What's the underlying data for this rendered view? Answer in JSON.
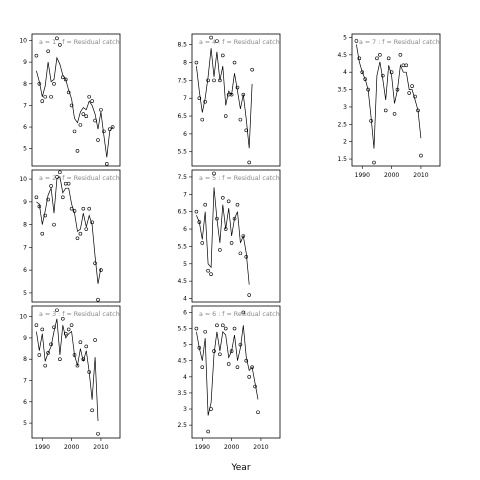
{
  "figure": {
    "xlabel": "Year"
  },
  "chart_data": [
    {
      "type": "line",
      "panel_label": "a = 1  :  f = Residual catch",
      "xlim": [
        1986.5,
        2016.5
      ],
      "ylim": [
        4.2,
        10.3
      ],
      "yticks": [
        5,
        6,
        7,
        8,
        9,
        10
      ],
      "xticks": [],
      "x": [
        1988,
        1989,
        1990,
        1991,
        1992,
        1993,
        1994,
        1995,
        1996,
        1997,
        1998,
        1999,
        2000,
        2001,
        2002,
        2003,
        2004,
        2005,
        2006,
        2007,
        2008,
        2009,
        2010,
        2011,
        2012,
        2013,
        2014,
        2015
      ],
      "points": [
        9.3,
        8.0,
        7.2,
        7.4,
        9.5,
        7.4,
        8.0,
        10.1,
        9.8,
        8.3,
        8.2,
        7.6,
        7.0,
        5.8,
        4.9,
        6.1,
        6.6,
        6.5,
        7.4,
        7.2,
        6.3,
        5.4,
        6.8,
        5.8,
        4.3,
        5.9,
        6.0,
        null
      ],
      "fitted": [
        8.6,
        8.1,
        7.4,
        7.9,
        9.0,
        8.1,
        8.2,
        9.2,
        8.9,
        8.4,
        8.2,
        7.7,
        7.3,
        6.4,
        6.2,
        6.7,
        6.9,
        6.8,
        7.2,
        7.0,
        6.6,
        5.9,
        6.7,
        5.6,
        4.6,
        5.8,
        6.0,
        null
      ]
    },
    {
      "type": "line",
      "panel_label": "a = 2  :  f = Residual catch",
      "xlim": [
        1986.5,
        2016.5
      ],
      "ylim": [
        4.6,
        10.4
      ],
      "yticks": [
        5,
        6,
        7,
        8,
        9,
        10
      ],
      "xticks": [],
      "x": [
        1988,
        1989,
        1990,
        1991,
        1992,
        1993,
        1994,
        1995,
        1996,
        1997,
        1998,
        1999,
        2000,
        2001,
        2002,
        2003,
        2004,
        2005,
        2006,
        2007,
        2008,
        2009,
        2010,
        2011,
        2012,
        2013,
        2014,
        2015
      ],
      "points": [
        9.2,
        8.8,
        7.6,
        8.4,
        9.1,
        9.7,
        8.0,
        10.1,
        10.3,
        9.2,
        9.8,
        9.8,
        8.7,
        8.6,
        7.4,
        7.6,
        8.7,
        7.8,
        8.7,
        8.1,
        6.3,
        4.7,
        6.0,
        null,
        null,
        null,
        null,
        null
      ],
      "fitted": [
        9.0,
        8.9,
        8.0,
        8.6,
        9.3,
        9.6,
        8.5,
        10.0,
        10.1,
        9.4,
        9.6,
        9.6,
        8.9,
        8.5,
        7.7,
        7.8,
        8.5,
        7.9,
        8.4,
        8.0,
        6.6,
        5.4,
        6.1,
        null,
        null,
        null,
        null,
        null
      ]
    },
    {
      "type": "line",
      "panel_label": "a = 3  :  f = Residual catch",
      "xlim": [
        1986.5,
        2016.5
      ],
      "ylim": [
        4.3,
        10.5
      ],
      "yticks": [
        5,
        6,
        7,
        8,
        9,
        10
      ],
      "xticks": [
        1990,
        2000,
        2010
      ],
      "x": [
        1988,
        1989,
        1990,
        1991,
        1992,
        1993,
        1994,
        1995,
        1996,
        1997,
        1998,
        1999,
        2000,
        2001,
        2002,
        2003,
        2004,
        2005,
        2006,
        2007,
        2008,
        2009,
        2010,
        2011,
        2012,
        2013,
        2014,
        2015
      ],
      "points": [
        9.6,
        8.2,
        9.4,
        7.7,
        8.3,
        8.7,
        9.5,
        10.3,
        8.0,
        9.9,
        9.2,
        9.4,
        9.6,
        8.2,
        7.7,
        8.8,
        8.0,
        8.6,
        7.4,
        5.6,
        8.9,
        4.5,
        null,
        null,
        null,
        null,
        null,
        null
      ],
      "fitted": [
        9.3,
        8.4,
        9.2,
        7.9,
        8.3,
        8.6,
        9.3,
        9.9,
        8.2,
        9.6,
        9.0,
        9.2,
        9.3,
        8.2,
        7.7,
        8.5,
        7.9,
        8.4,
        7.4,
        6.1,
        8.1,
        5.1,
        null,
        null,
        null,
        null,
        null,
        null
      ]
    },
    {
      "type": "line",
      "panel_label": "a = 4  :  f = Residual catch",
      "xlim": [
        1986.5,
        2016.5
      ],
      "ylim": [
        5.1,
        8.8
      ],
      "yticks": [
        5.5,
        6.0,
        6.5,
        7.0,
        7.5,
        8.0,
        8.5
      ],
      "xticks": [],
      "x": [
        1988,
        1989,
        1990,
        1991,
        1992,
        1993,
        1994,
        1995,
        1996,
        1997,
        1998,
        1999,
        2000,
        2001,
        2002,
        2003,
        2004,
        2005,
        2006,
        2007,
        2008,
        2009,
        2010,
        2011,
        2012,
        2013,
        2014,
        2015
      ],
      "points": [
        8.0,
        7.0,
        6.4,
        6.9,
        7.5,
        8.7,
        7.5,
        8.6,
        7.5,
        8.2,
        6.5,
        7.1,
        7.1,
        8.0,
        7.3,
        6.4,
        7.1,
        6.1,
        5.2,
        7.8,
        null,
        null,
        null,
        null,
        null,
        null,
        null,
        null
      ],
      "fitted": [
        7.9,
        7.2,
        6.6,
        7.0,
        7.6,
        8.4,
        7.6,
        8.3,
        7.5,
        7.9,
        6.8,
        7.2,
        7.1,
        7.7,
        7.2,
        6.7,
        7.1,
        6.4,
        5.6,
        7.4,
        null,
        null,
        null,
        null,
        null,
        null,
        null,
        null
      ]
    },
    {
      "type": "line",
      "panel_label": "a = 5  :  f = Residual catch",
      "xlim": [
        1986.5,
        2016.5
      ],
      "ylim": [
        3.9,
        7.7
      ],
      "yticks": [
        4.0,
        4.5,
        5.0,
        5.5,
        6.0,
        6.5,
        7.0,
        7.5
      ],
      "xticks": [],
      "x": [
        1988,
        1989,
        1990,
        1991,
        1992,
        1993,
        1994,
        1995,
        1996,
        1997,
        1998,
        1999,
        2000,
        2001,
        2002,
        2003,
        2004,
        2005,
        2006,
        2007,
        2008,
        2009,
        2010,
        2011,
        2012,
        2013,
        2014,
        2015
      ],
      "points": [
        6.5,
        6.2,
        5.6,
        6.7,
        4.8,
        4.7,
        7.6,
        6.3,
        5.4,
        6.9,
        6.0,
        6.8,
        5.6,
        6.3,
        6.7,
        5.3,
        5.8,
        5.2,
        4.1,
        null,
        null,
        null,
        null,
        null,
        null,
        null,
        null,
        null
      ],
      "fitted": [
        6.4,
        6.2,
        5.7,
        6.5,
        5.0,
        4.9,
        7.2,
        6.3,
        5.6,
        6.7,
        6.0,
        6.6,
        5.8,
        6.3,
        6.5,
        5.6,
        5.8,
        5.3,
        4.4,
        null,
        null,
        null,
        null,
        null,
        null,
        null,
        null,
        null
      ]
    },
    {
      "type": "line",
      "panel_label": "a = 6  :  f = Residual catch",
      "xlim": [
        1986.5,
        2016.5
      ],
      "ylim": [
        2.1,
        6.2
      ],
      "yticks": [
        2.5,
        3.0,
        3.5,
        4.0,
        4.5,
        5.0,
        5.5,
        6.0
      ],
      "xticks": [
        1990,
        2000,
        2010
      ],
      "x": [
        1988,
        1989,
        1990,
        1991,
        1992,
        1993,
        1994,
        1995,
        1996,
        1997,
        1998,
        1999,
        2000,
        2001,
        2002,
        2003,
        2004,
        2005,
        2006,
        2007,
        2008,
        2009,
        2010,
        2011,
        2012,
        2013,
        2014,
        2015
      ],
      "points": [
        5.5,
        4.9,
        4.3,
        5.4,
        2.3,
        3.0,
        4.8,
        5.6,
        4.7,
        5.6,
        5.5,
        4.4,
        4.8,
        5.5,
        4.3,
        5.0,
        6.0,
        4.5,
        4.0,
        4.3,
        3.7,
        2.9,
        null,
        null,
        null,
        null,
        null,
        null
      ],
      "fitted": [
        5.4,
        4.9,
        4.5,
        5.2,
        2.8,
        3.2,
        4.7,
        5.4,
        4.8,
        5.4,
        5.3,
        4.6,
        4.8,
        5.3,
        4.5,
        4.9,
        5.6,
        4.6,
        4.2,
        4.3,
        3.8,
        3.3,
        null,
        null,
        null,
        null,
        null,
        null
      ]
    },
    {
      "type": "line",
      "panel_label": "a = 7  :  f = Residual catch",
      "xlim": [
        1986.5,
        2016.5
      ],
      "ylim": [
        1.3,
        5.1
      ],
      "yticks": [
        1.5,
        2.0,
        2.5,
        3.0,
        3.5,
        4.0,
        4.5,
        5.0
      ],
      "xticks": [
        1990,
        2000,
        2010
      ],
      "x": [
        1988,
        1989,
        1990,
        1991,
        1992,
        1993,
        1994,
        1995,
        1996,
        1997,
        1998,
        1999,
        2000,
        2001,
        2002,
        2003,
        2004,
        2005,
        2006,
        2007,
        2008,
        2009,
        2010,
        2011,
        2012,
        2013,
        2014,
        2015
      ],
      "points": [
        4.9,
        4.4,
        4.0,
        3.8,
        3.5,
        2.6,
        1.4,
        4.4,
        4.5,
        3.9,
        2.9,
        4.4,
        4.0,
        2.8,
        3.5,
        4.5,
        4.2,
        4.2,
        3.4,
        3.6,
        3.3,
        2.9,
        1.6,
        null,
        null,
        null,
        null,
        null
      ],
      "fitted": [
        4.8,
        4.3,
        4.0,
        3.8,
        3.5,
        2.7,
        1.8,
        3.9,
        4.3,
        3.8,
        3.2,
        4.2,
        3.9,
        3.1,
        3.5,
        4.2,
        4.0,
        4.0,
        3.5,
        3.5,
        3.2,
        2.9,
        2.1,
        null,
        null,
        null,
        null,
        null
      ]
    }
  ]
}
